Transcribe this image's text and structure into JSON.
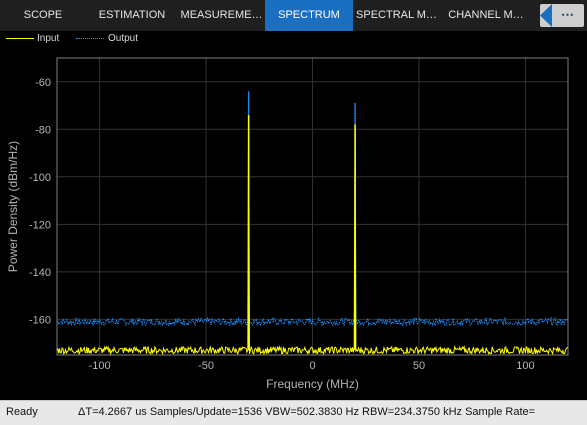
{
  "tabs": [
    {
      "label": "SCOPE",
      "active": false
    },
    {
      "label": "ESTIMATION",
      "active": false
    },
    {
      "label": "MEASUREME…",
      "active": false
    },
    {
      "label": "SPECTRUM",
      "active": true
    },
    {
      "label": "SPECTRAL M…",
      "active": false
    },
    {
      "label": "CHANNEL M…",
      "active": false
    }
  ],
  "tab_more_label": "⋯",
  "legend": {
    "input": {
      "label": "Input",
      "color": "#ffff00",
      "style": "solid"
    },
    "output": {
      "label": "Output",
      "color": "#1e8fff",
      "style": "dotted"
    }
  },
  "status": {
    "ready": "Ready",
    "info": "ΔT=4.2667 us  Samples/Update=1536  VBW=502.3830 Hz  RBW=234.3750 kHz  Sample Rate="
  },
  "colors": {
    "tab_active": "#1a6fc1",
    "input_trace": "#ffff00",
    "output_trace": "#1e8fff",
    "axis_text": "#b4b4b4",
    "grid": "#333333"
  },
  "chart_data": {
    "type": "line",
    "xlabel": "Frequency (MHz)",
    "ylabel": "Power Density (dBm/Hz)",
    "xlim": [
      -120,
      120
    ],
    "ylim": [
      -175,
      -50
    ],
    "xticks": [
      -100,
      -50,
      0,
      50,
      100
    ],
    "yticks": [
      -60,
      -80,
      -100,
      -120,
      -140,
      -160
    ],
    "grid": true,
    "legend_position": "top-left",
    "series": [
      {
        "name": "Input",
        "noise_floor": -173,
        "noise_spread": 1.5,
        "peaks": [
          {
            "x": -30,
            "y": -74
          },
          {
            "x": 20,
            "y": -78
          }
        ]
      },
      {
        "name": "Output",
        "noise_floor": -161,
        "noise_spread": 1.5,
        "peaks": [
          {
            "x": -30,
            "y": -64
          },
          {
            "x": 20,
            "y": -69
          }
        ]
      }
    ]
  }
}
